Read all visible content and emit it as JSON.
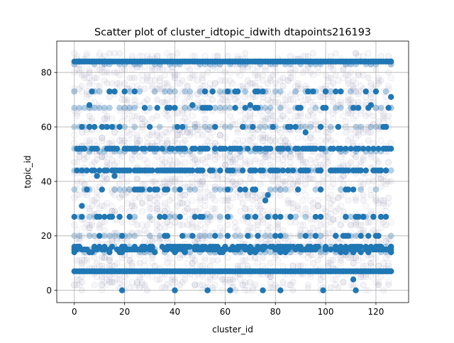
{
  "chart_data": {
    "type": "scatter",
    "title": "Scatter plot of cluster_idtopic_idwith dtapoints216193",
    "xlabel": "cluster_id",
    "ylabel": "topic_id",
    "xlim": [
      -7,
      133
    ],
    "ylim": [
      -4.5,
      91.5
    ],
    "x_ticks": [
      0,
      20,
      40,
      60,
      80,
      100,
      120
    ],
    "y_ticks": [
      0,
      20,
      40,
      60,
      80
    ],
    "grid": true,
    "x_range_observed": [
      0,
      126
    ],
    "y_range_observed": [
      0,
      87
    ],
    "dense_topic_rows": [
      84,
      83,
      73,
      67,
      60,
      52,
      51,
      44,
      37,
      27,
      20,
      16,
      15,
      14,
      7
    ],
    "colors": {
      "series": "#1f77b4",
      "faint_points": "#b0b0c0",
      "faint_edge": "#8080b0",
      "grid": "#b0b0b0",
      "axes": "#000000"
    },
    "solid_points": [
      {
        "x": 3,
        "y": 31
      },
      {
        "x": 6,
        "y": 68
      },
      {
        "x": 9,
        "y": 42
      },
      {
        "x": 14,
        "y": 27
      },
      {
        "x": 16,
        "y": 42
      },
      {
        "x": 17,
        "y": 44
      },
      {
        "x": 18,
        "y": 60
      },
      {
        "x": 19,
        "y": 0
      },
      {
        "x": 22,
        "y": 27
      },
      {
        "x": 25,
        "y": 44
      },
      {
        "x": 30,
        "y": 60
      },
      {
        "x": 33,
        "y": 67
      },
      {
        "x": 40,
        "y": 0
      },
      {
        "x": 47,
        "y": 68
      },
      {
        "x": 48,
        "y": 27
      },
      {
        "x": 53,
        "y": 0
      },
      {
        "x": 56,
        "y": 52
      },
      {
        "x": 62,
        "y": 0
      },
      {
        "x": 69,
        "y": 27
      },
      {
        "x": 70,
        "y": 68
      },
      {
        "x": 72,
        "y": 27
      },
      {
        "x": 75,
        "y": 0
      },
      {
        "x": 76,
        "y": 33
      },
      {
        "x": 77,
        "y": 35
      },
      {
        "x": 82,
        "y": 0
      },
      {
        "x": 85,
        "y": 60
      },
      {
        "x": 92,
        "y": 58
      },
      {
        "x": 99,
        "y": 0
      },
      {
        "x": 105,
        "y": 60
      },
      {
        "x": 107,
        "y": 20
      },
      {
        "x": 111,
        "y": 4
      },
      {
        "x": 112,
        "y": 0
      },
      {
        "x": 115,
        "y": 27
      },
      {
        "x": 118,
        "y": 68
      },
      {
        "x": 122,
        "y": 16
      },
      {
        "x": 124,
        "y": 60
      },
      {
        "x": 125,
        "y": 67
      },
      {
        "x": 126,
        "y": 71
      },
      {
        "x": 124,
        "y": 27
      },
      {
        "x": 1,
        "y": 16
      }
    ]
  }
}
